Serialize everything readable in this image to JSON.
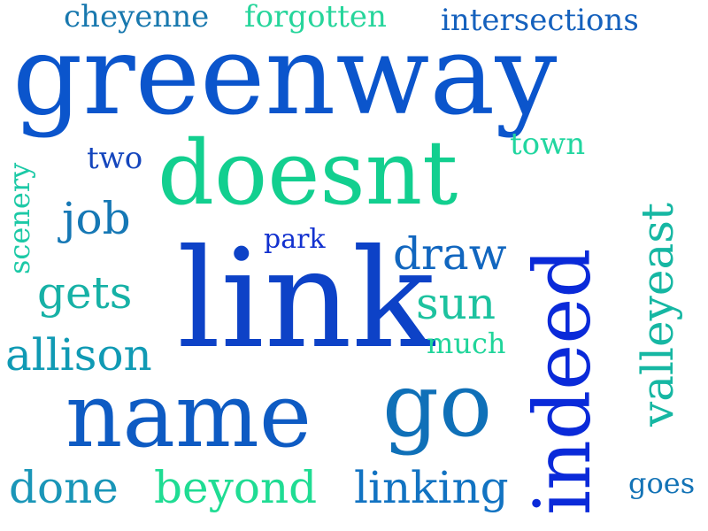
{
  "words": [
    {
      "text": "greenway",
      "color": "#0b55cc"
    },
    {
      "text": "link",
      "color": "#0d42c7"
    },
    {
      "text": "doesnt",
      "color": "#12cf8f"
    },
    {
      "text": "name",
      "color": "#0e5bc3"
    },
    {
      "text": "indeed",
      "color": "#0a2ad9"
    },
    {
      "text": "go",
      "color": "#0f70b8"
    },
    {
      "text": "beyond",
      "color": "#1fdc93"
    },
    {
      "text": "linking",
      "color": "#1273c2"
    },
    {
      "text": "done",
      "color": "#1a96b8"
    },
    {
      "text": "allison",
      "color": "#109ab4"
    },
    {
      "text": "gets",
      "color": "#16b1a6"
    },
    {
      "text": "job",
      "color": "#1678b5"
    },
    {
      "text": "draw",
      "color": "#1166bf"
    },
    {
      "text": "sun",
      "color": "#1dc29f"
    },
    {
      "text": "much",
      "color": "#20d59a"
    },
    {
      "text": "park",
      "color": "#1231cf"
    },
    {
      "text": "two",
      "color": "#1546bd"
    },
    {
      "text": "town",
      "color": "#22d6a0"
    },
    {
      "text": "valleyeast",
      "color": "#16b7a3"
    },
    {
      "text": "scenery",
      "color": "#1cc9a6"
    },
    {
      "text": "cheyenne",
      "color": "#1878ae"
    },
    {
      "text": "forgotten",
      "color": "#26d59b"
    },
    {
      "text": "intersections",
      "color": "#1561bd"
    },
    {
      "text": "goes",
      "color": "#1373b6"
    }
  ]
}
